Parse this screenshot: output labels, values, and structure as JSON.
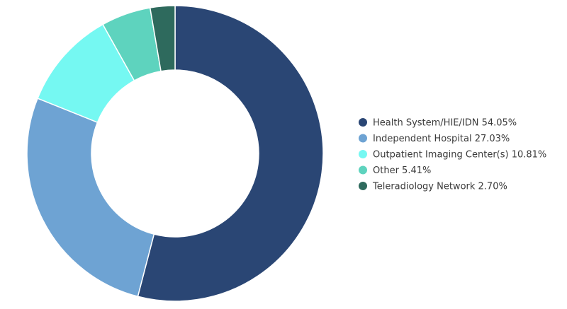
{
  "chart_data": {
    "type": "pie",
    "donut": true,
    "title": "",
    "legend_position": "right",
    "slices": [
      {
        "label": "Health System/HIE/IDN",
        "value": 54.05,
        "value_label": "54.05%",
        "color": "#2a4674"
      },
      {
        "label": "Independent Hospital",
        "value": 27.03,
        "value_label": "27.03%",
        "color": "#6ea3d3"
      },
      {
        "label": "Outpatient Imaging Center(s)",
        "value": 10.81,
        "value_label": "10.81%",
        "color": "#75f8f2"
      },
      {
        "label": "Other",
        "value": 5.41,
        "value_label": "5.41%",
        "color": "#5ed3be"
      },
      {
        "label": "Teleradiology Network",
        "value": 2.7,
        "value_label": "2.70%",
        "color": "#2e6a5d"
      }
    ]
  }
}
